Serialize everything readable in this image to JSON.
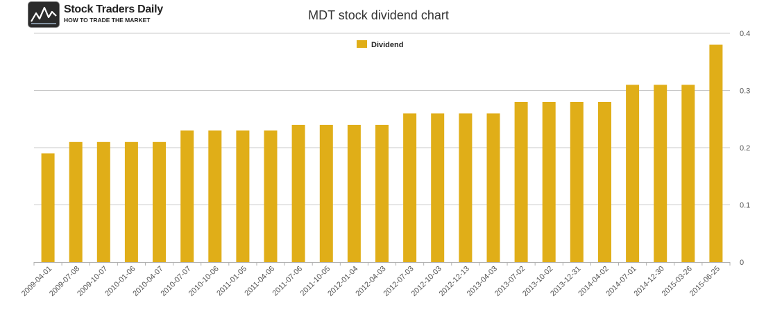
{
  "logo": {
    "name": "Stock Traders Daily",
    "tagline": "HOW TO TRADE THE MARKET"
  },
  "chart_data": {
    "type": "bar",
    "title": "MDT stock dividend chart",
    "xlabel": "",
    "ylabel": "",
    "categories": [
      "2009-04-01",
      "2009-07-08",
      "2009-10-07",
      "2010-01-06",
      "2010-04-07",
      "2010-07-07",
      "2010-10-06",
      "2011-01-05",
      "2011-04-06",
      "2011-07-06",
      "2011-10-05",
      "2012-01-04",
      "2012-04-03",
      "2012-07-03",
      "2012-10-03",
      "2012-12-13",
      "2013-04-03",
      "2013-07-02",
      "2013-10-02",
      "2013-12-31",
      "2014-04-02",
      "2014-07-01",
      "2014-12-30",
      "2015-03-26",
      "2015-06-25"
    ],
    "series": [
      {
        "name": "Dividend",
        "color": "#e0ae18",
        "values": [
          0.19,
          0.21,
          0.21,
          0.21,
          0.21,
          0.23,
          0.23,
          0.23,
          0.23,
          0.24,
          0.24,
          0.24,
          0.24,
          0.26,
          0.26,
          0.26,
          0.26,
          0.28,
          0.28,
          0.28,
          0.28,
          0.31,
          0.31,
          0.31,
          0.38
        ]
      }
    ],
    "ylim": [
      0,
      0.4
    ],
    "yticks": [
      "0",
      "0.1",
      "0.2",
      "0.3",
      "0.4"
    ],
    "y_axis_side": "right",
    "grid": true,
    "legend_position": "top-center"
  }
}
